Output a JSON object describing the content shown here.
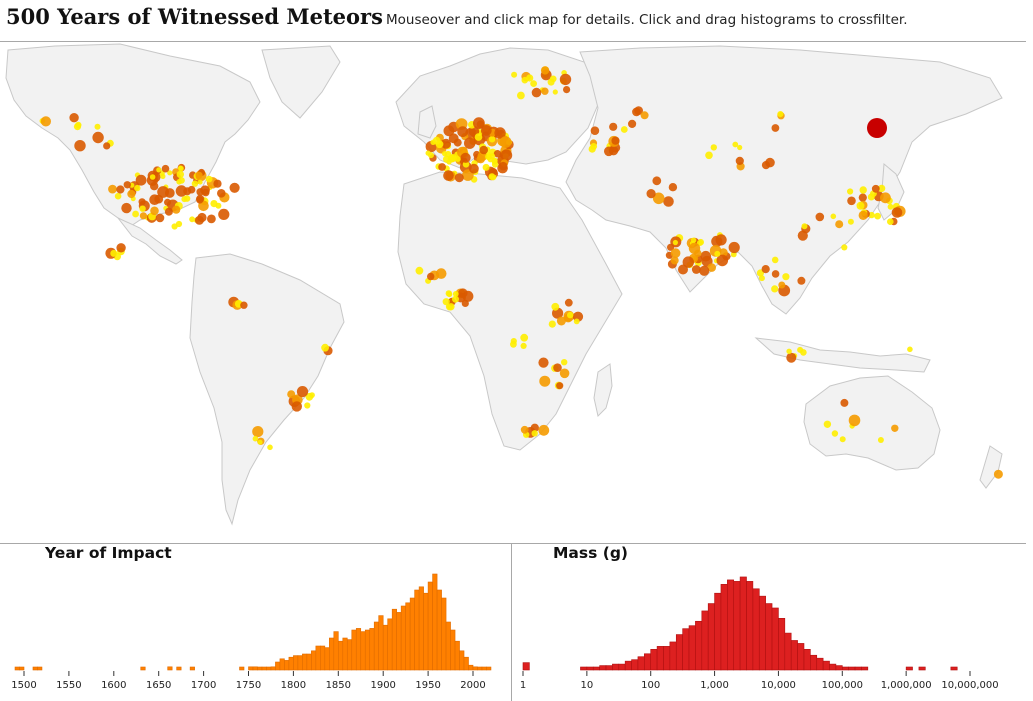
{
  "header": {
    "title": "500 Years of Witnessed Meteors",
    "instructions": "Mouseover and click map for details. Click and drag histograms to crossfilter."
  },
  "colors": {
    "land": "#f2f2f2",
    "border": "#c8c8c8",
    "meteor_small": "#ffee00",
    "meteor_medium": "#f59b00",
    "meteor_large": "#d95a00",
    "meteor_huge": "#c80000",
    "year_bar": "#ff8000",
    "year_bar_stroke": "#e06c00",
    "mass_bar": "#dd2020",
    "mass_bar_stroke": "#b01010"
  },
  "map": {
    "type": "bubble-map",
    "projection": "world equirectangular",
    "size_encoding": "mass",
    "color_scale": [
      "small: yellow",
      "medium: orange",
      "large: dark orange",
      "largest: red"
    ]
  },
  "chart_data": [
    {
      "type": "bar",
      "title": "Year of Impact",
      "x_ticks": [
        "1500",
        "1550",
        "1600",
        "1650",
        "1700",
        "1750",
        "1800",
        "1850",
        "1900",
        "1950",
        "2000"
      ],
      "xlim": [
        1490,
        2020
      ],
      "bin_width": 5,
      "bins_start": [
        1490,
        1495,
        1500,
        1505,
        1510,
        1515,
        1520,
        1525,
        1530,
        1535,
        1540,
        1545,
        1550,
        1555,
        1560,
        1565,
        1570,
        1575,
        1580,
        1585,
        1590,
        1595,
        1600,
        1605,
        1610,
        1615,
        1620,
        1625,
        1630,
        1635,
        1640,
        1645,
        1650,
        1655,
        1660,
        1665,
        1670,
        1675,
        1680,
        1685,
        1690,
        1695,
        1700,
        1705,
        1710,
        1715,
        1720,
        1725,
        1730,
        1735,
        1740,
        1745,
        1750,
        1755,
        1760,
        1765,
        1770,
        1775,
        1780,
        1785,
        1790,
        1795,
        1800,
        1805,
        1810,
        1815,
        1820,
        1825,
        1830,
        1835,
        1840,
        1845,
        1850,
        1855,
        1860,
        1865,
        1870,
        1875,
        1880,
        1885,
        1890,
        1895,
        1900,
        1905,
        1910,
        1915,
        1920,
        1925,
        1930,
        1935,
        1940,
        1945,
        1950,
        1955,
        1960,
        1965,
        1970,
        1975,
        1980,
        1985,
        1990,
        1995,
        2000,
        2005,
        2010,
        2015
      ],
      "values": [
        1,
        1,
        0,
        0,
        1,
        1,
        0,
        0,
        0,
        0,
        0,
        0,
        0,
        0,
        0,
        0,
        0,
        0,
        0,
        0,
        0,
        0,
        0,
        0,
        0,
        0,
        0,
        0,
        1,
        0,
        0,
        0,
        0,
        0,
        2,
        0,
        1,
        0,
        0,
        1,
        0,
        0,
        0,
        0,
        0,
        0,
        0,
        0,
        0,
        0,
        1,
        0,
        2,
        2,
        1,
        1,
        1,
        2,
        5,
        7,
        6,
        8,
        9,
        9,
        10,
        10,
        12,
        15,
        15,
        14,
        20,
        24,
        18,
        20,
        19,
        25,
        26,
        24,
        25,
        26,
        30,
        34,
        28,
        32,
        38,
        36,
        40,
        42,
        45,
        50,
        52,
        48,
        55,
        60,
        50,
        45,
        30,
        25,
        18,
        12,
        8,
        3,
        2,
        1,
        1,
        1
      ],
      "ylim": [
        0,
        60
      ]
    },
    {
      "type": "bar",
      "title": "Mass (g)",
      "x_ticks": [
        "1",
        "10",
        "100",
        "1,000",
        "10,000",
        "100,000",
        "1,000,000",
        "10,000,000"
      ],
      "x_scale": "log",
      "xlim": [
        1,
        10000000
      ],
      "bins_start_log10": [
        0,
        0.1,
        0.2,
        0.3,
        0.4,
        0.5,
        0.6,
        0.7,
        0.8,
        0.9,
        1,
        1.1,
        1.2,
        1.3,
        1.4,
        1.5,
        1.6,
        1.7,
        1.8,
        1.9,
        2,
        2.1,
        2.2,
        2.3,
        2.4,
        2.5,
        2.6,
        2.7,
        2.8,
        2.9,
        3,
        3.1,
        3.2,
        3.3,
        3.4,
        3.5,
        3.6,
        3.7,
        3.8,
        3.9,
        4,
        4.1,
        4.2,
        4.3,
        4.4,
        4.5,
        4.6,
        4.7,
        4.8,
        4.9,
        5,
        5.1,
        5.2,
        5.3,
        5.4,
        5.5,
        5.6,
        5.7,
        5.8,
        5.9,
        6,
        6.1,
        6.2,
        6.3,
        6.4,
        6.5,
        6.6,
        6.7,
        6.8,
        6.9
      ],
      "values": [
        5,
        0,
        0,
        0,
        0,
        0,
        0,
        0,
        0,
        1,
        2,
        2,
        3,
        3,
        4,
        4,
        6,
        7,
        9,
        11,
        14,
        16,
        16,
        19,
        24,
        28,
        30,
        33,
        40,
        45,
        52,
        58,
        61,
        60,
        63,
        60,
        55,
        50,
        45,
        42,
        35,
        25,
        20,
        18,
        14,
        10,
        8,
        6,
        4,
        3,
        2,
        1,
        1,
        1,
        0,
        0,
        0,
        0,
        0,
        0,
        1,
        0,
        1,
        0,
        0,
        0,
        0,
        1,
        0,
        0
      ],
      "ylim": [
        0,
        65
      ]
    }
  ]
}
